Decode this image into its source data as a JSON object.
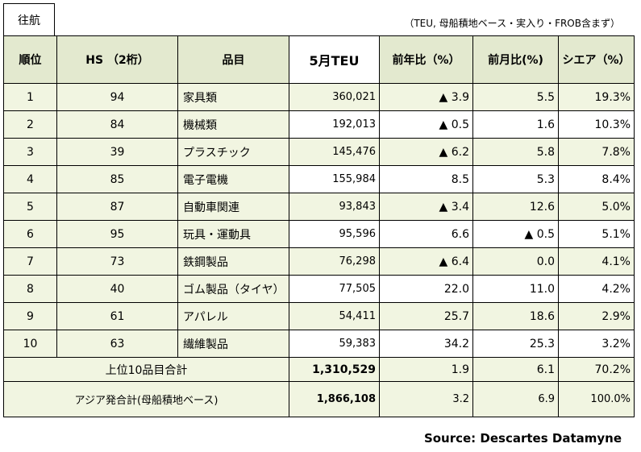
{
  "tag_label": "往航",
  "note": "（TEU, 母船積地ベース・実入り・FROB含まず）",
  "headers": {
    "rank": "順位",
    "hs": "HS （2桁）",
    "item": "品目",
    "teu": "5月TEU",
    "yoy": "前年比（%）",
    "mom": "前月比(%)",
    "share": "シエア（%）"
  },
  "rows": [
    {
      "rank": "1",
      "hs": "94",
      "item": "家具類",
      "teu": "360,021",
      "yoy": "▲ 3.9",
      "mom": "5.5",
      "share": "19.3%"
    },
    {
      "rank": "2",
      "hs": "84",
      "item": "機械類",
      "teu": "192,013",
      "yoy": "▲ 0.5",
      "mom": "1.6",
      "share": "10.3%"
    },
    {
      "rank": "3",
      "hs": "39",
      "item": "プラスチック",
      "teu": "145,476",
      "yoy": "▲ 6.2",
      "mom": "5.8",
      "share": "7.8%"
    },
    {
      "rank": "4",
      "hs": "85",
      "item": "電子電機",
      "teu": "155,984",
      "yoy": "8.5",
      "mom": "5.3",
      "share": "8.4%"
    },
    {
      "rank": "5",
      "hs": "87",
      "item": "自動車関連",
      "teu": "93,843",
      "yoy": "▲ 3.4",
      "mom": "12.6",
      "share": "5.0%"
    },
    {
      "rank": "6",
      "hs": "95",
      "item": "玩具・運動具",
      "teu": "95,596",
      "yoy": "6.6",
      "mom": "▲ 0.5",
      "share": "5.1%"
    },
    {
      "rank": "7",
      "hs": "73",
      "item": "鉄鋼製品",
      "teu": "76,298",
      "yoy": "▲ 6.4",
      "mom": "0.0",
      "share": "4.1%"
    },
    {
      "rank": "8",
      "hs": "40",
      "item": "ゴム製品（タイヤ）",
      "teu": "77,505",
      "yoy": "22.0",
      "mom": "11.0",
      "share": "4.2%"
    },
    {
      "rank": "9",
      "hs": "61",
      "item": "アパレル",
      "teu": "54,411",
      "yoy": "25.7",
      "mom": "18.6",
      "share": "2.9%"
    },
    {
      "rank": "10",
      "hs": "63",
      "item": "繊維製品",
      "teu": "59,383",
      "yoy": "34.2",
      "mom": "25.3",
      "share": "3.2%"
    }
  ],
  "total": {
    "label": "上位10品目合計",
    "teu": "1,310,529",
    "yoy": "1.9",
    "mom": "6.1",
    "share": "70.2%"
  },
  "asia": {
    "label": "アジア発合計(母船積地ベース)",
    "teu": "1,866,108",
    "yoy": "3.2",
    "mom": "6.9",
    "share": "100.0%"
  },
  "source": "Source: Descartes Datamyne"
}
